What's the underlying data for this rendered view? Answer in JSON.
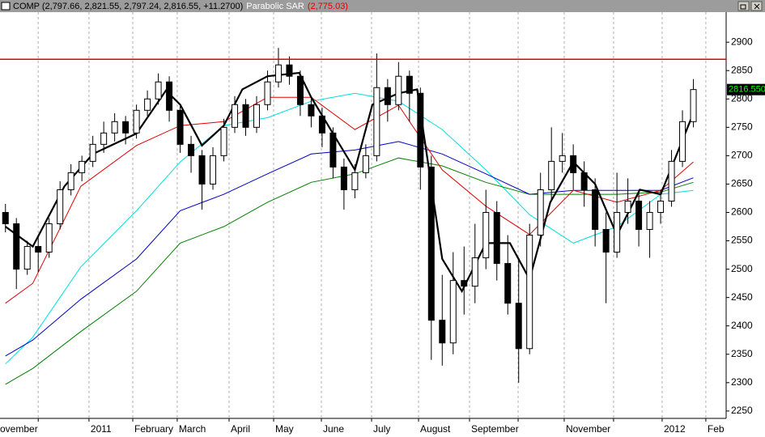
{
  "chart_data": {
    "type": "candlestick",
    "symbol_label": "COMP (2,797.66, 2,821.55, 2,797.24, 2,816.55, +11.2700)",
    "indicator_name": "Parabolic SAR",
    "indicator_value": "(2,775.03)",
    "xlim": [
      0,
      66.5
    ],
    "ylim": [
      2237,
      2953
    ],
    "yticks": [
      2250,
      2300,
      2350,
      2400,
      2450,
      2500,
      2550,
      2600,
      2650,
      2700,
      2750,
      2800,
      2850,
      2900
    ],
    "xticks": [
      {
        "value": -0.15,
        "label": "ovember"
      },
      {
        "value": 3.5,
        "label": null
      },
      {
        "value": 8.15,
        "label": "2011"
      },
      {
        "value": 12.16,
        "label": "February"
      },
      {
        "value": 16.23,
        "label": "March"
      },
      {
        "value": 20.98,
        "label": "April"
      },
      {
        "value": 25.06,
        "label": "May"
      },
      {
        "value": 29.43,
        "label": "June"
      },
      {
        "value": 34.03,
        "label": "July"
      },
      {
        "value": 38.33,
        "label": "August"
      },
      {
        "value": 43.0,
        "label": "September"
      },
      {
        "value": 47.45,
        "label": null
      },
      {
        "value": 51.67,
        "label": "November"
      },
      {
        "value": 56.19,
        "label": null
      },
      {
        "value": 60.64,
        "label": "2012"
      },
      {
        "value": 64.64,
        "label": "Feb"
      }
    ],
    "grid": true,
    "hline": {
      "value": 2870,
      "color": "#e00000"
    },
    "last_price": {
      "value": 2816.55,
      "label": "2816.550"
    },
    "open": [
      2600,
      2580,
      2500,
      2540,
      2530,
      2580,
      2640,
      2670,
      2690,
      2720,
      2740,
      2760,
      2740,
      2780,
      2800,
      2830,
      2780,
      2720,
      2700,
      2650,
      2700,
      2750,
      2790,
      2750,
      2790,
      2830,
      2860,
      2840,
      2790,
      2770,
      2740,
      2680,
      2640,
      2670,
      2700,
      2820,
      2790,
      2840,
      2810,
      2680,
      2410,
      2370,
      2480,
      2470,
      2520,
      2600,
      2510,
      2440,
      2360,
      2560,
      2640,
      2690,
      2700,
      2670,
      2640,
      2570,
      2530,
      2600,
      2620,
      2570,
      2600,
      2620,
      2690,
      2760
    ],
    "high": [
      2615,
      2590,
      2550,
      2560,
      2590,
      2655,
      2685,
      2700,
      2735,
      2760,
      2775,
      2770,
      2790,
      2815,
      2845,
      2840,
      2790,
      2735,
      2710,
      2715,
      2765,
      2805,
      2800,
      2805,
      2850,
      2890,
      2875,
      2850,
      2800,
      2785,
      2750,
      2695,
      2685,
      2720,
      2880,
      2835,
      2865,
      2850,
      2820,
      2700,
      2490,
      2530,
      2540,
      2580,
      2640,
      2620,
      2560,
      2520,
      2580,
      2670,
      2750,
      2740,
      2720,
      2690,
      2660,
      2600,
      2670,
      2660,
      2640,
      2620,
      2640,
      2710,
      2780,
      2835
    ],
    "low": [
      2565,
      2465,
      2490,
      2495,
      2520,
      2570,
      2630,
      2655,
      2680,
      2705,
      2725,
      2720,
      2730,
      2770,
      2790,
      2760,
      2705,
      2670,
      2605,
      2640,
      2690,
      2740,
      2735,
      2740,
      2780,
      2820,
      2825,
      2770,
      2750,
      2715,
      2660,
      2605,
      2625,
      2660,
      2690,
      2760,
      2780,
      2760,
      2640,
      2340,
      2330,
      2350,
      2420,
      2440,
      2500,
      2480,
      2420,
      2300,
      2350,
      2540,
      2620,
      2670,
      2640,
      2610,
      2540,
      2440,
      2520,
      2580,
      2540,
      2520,
      2580,
      2610,
      2680,
      2750
    ],
    "close": [
      2580,
      2500,
      2540,
      2530,
      2580,
      2640,
      2670,
      2690,
      2720,
      2740,
      2760,
      2740,
      2780,
      2800,
      2830,
      2780,
      2720,
      2700,
      2650,
      2700,
      2750,
      2790,
      2750,
      2790,
      2830,
      2860,
      2840,
      2790,
      2770,
      2740,
      2680,
      2640,
      2670,
      2700,
      2820,
      2790,
      2840,
      2810,
      2680,
      2410,
      2370,
      2480,
      2470,
      2520,
      2600,
      2510,
      2440,
      2360,
      2560,
      2640,
      2690,
      2700,
      2670,
      2640,
      2570,
      2530,
      2600,
      2620,
      2570,
      2600,
      2620,
      2690,
      2760,
      2816.55
    ],
    "up_color": "#ffffff",
    "down_color": "#000000",
    "overlays": [
      {
        "color": "#00e0e0",
        "width": 1,
        "x": [
          0.5,
          3.0,
          7.4,
          12.5,
          16.5,
          20.5,
          24.5,
          28.5,
          32.5,
          36.5,
          40.5,
          44.5,
          48.5,
          52.5,
          56.5,
          60.5,
          63.5
        ],
        "values": [
          2333,
          2380,
          2504,
          2603,
          2689,
          2753,
          2767,
          2796,
          2810,
          2796,
          2746,
          2675,
          2596,
          2546,
          2575,
          2632,
          2639
        ]
      },
      {
        "color": "#008000",
        "width": 1,
        "x": [
          0.5,
          3.0,
          7.4,
          12.5,
          16.5,
          20.5,
          24.5,
          28.5,
          32.5,
          36.5,
          40.5,
          44.5,
          48.5,
          52.5,
          56.5,
          60.5,
          63.5
        ],
        "values": [
          2297,
          2325,
          2390,
          2461,
          2546,
          2575,
          2618,
          2653,
          2668,
          2696,
          2682,
          2653,
          2632,
          2632,
          2632,
          2636,
          2653
        ]
      },
      {
        "color": "#0000c0",
        "width": 1,
        "x": [
          0.5,
          3.0,
          7.4,
          12.5,
          16.5,
          20.5,
          24.5,
          28.5,
          32.5,
          36.5,
          40.5,
          44.5,
          48.5,
          52.5,
          56.5,
          60.5,
          63.5
        ],
        "values": [
          2347,
          2375,
          2447,
          2518,
          2603,
          2632,
          2668,
          2703,
          2710,
          2725,
          2703,
          2668,
          2632,
          2639,
          2639,
          2639,
          2661
        ]
      },
      {
        "color": "#e00000",
        "width": 1,
        "x": [
          0.5,
          3.0,
          7.4,
          12.5,
          16.5,
          20.5,
          24.5,
          28.5,
          32.5,
          36.5,
          40.5,
          44.5,
          48.5,
          52.5,
          56.5,
          60.5,
          63.5
        ],
        "values": [
          2440,
          2475,
          2646,
          2718,
          2753,
          2760,
          2803,
          2803,
          2746,
          2789,
          2675,
          2611,
          2561,
          2639,
          2618,
          2639,
          2689
        ]
      },
      {
        "color": "#000000",
        "width": 2.2,
        "x": [
          0.5,
          3.0,
          5.9,
          8.5,
          12.5,
          15.2,
          16.5,
          18.5,
          20.5,
          22.2,
          24.5,
          27.4,
          28.5,
          32.5,
          34.1,
          36.5,
          38.2,
          40.5,
          42.3,
          44.5,
          46.7,
          48.5,
          50.4,
          52.5,
          54.5,
          56.5,
          58.6,
          60.5,
          63.5
        ],
        "values": [
          2575,
          2540,
          2646,
          2703,
          2739,
          2815,
          2790,
          2718,
          2753,
          2817,
          2840,
          2846,
          2803,
          2675,
          2790,
          2810,
          2817,
          2518,
          2461,
          2546,
          2546,
          2482,
          2618,
          2689,
          2650,
          2560,
          2640,
          2632,
          2775
        ]
      }
    ]
  }
}
